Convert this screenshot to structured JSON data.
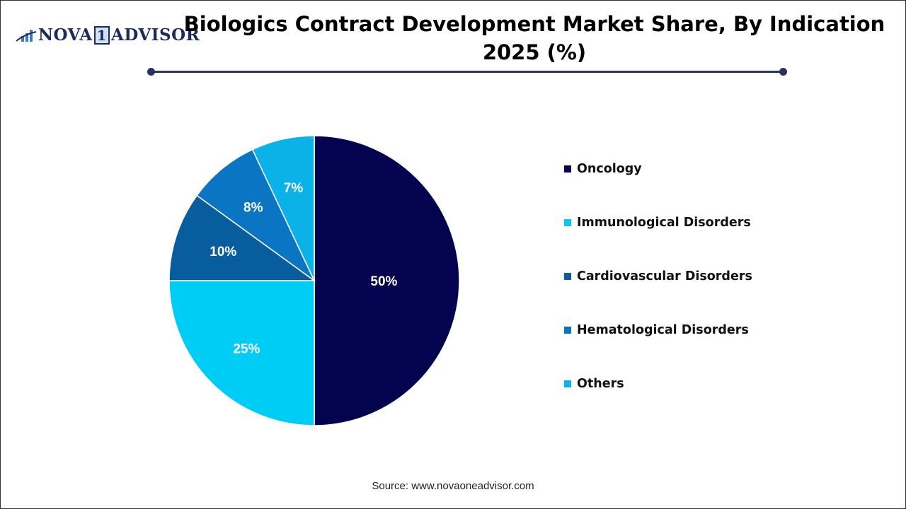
{
  "logo": {
    "text_main": "NOVA",
    "text_one": "1",
    "text_end": "ADVISOR"
  },
  "chart_data": {
    "type": "pie",
    "title": "Biologics Contract Development Market Share, By Indication 2025 (%)",
    "categories": [
      "Oncology",
      "Immunological Disorders",
      "Cardiovascular Disorders",
      "Hematological Disorders",
      "Others"
    ],
    "values": [
      50,
      25,
      10,
      8,
      7
    ],
    "labels": [
      "50%",
      "25%",
      "10%",
      "8%",
      "7%"
    ],
    "colors": [
      "#03034f",
      "#00cdf5",
      "#075d9e",
      "#0a75c2",
      "#0ab2e8"
    ],
    "start": "12 o'clock, clockwise",
    "legend_position": "right"
  },
  "source": "Source: www.novaoneadvisor.com"
}
